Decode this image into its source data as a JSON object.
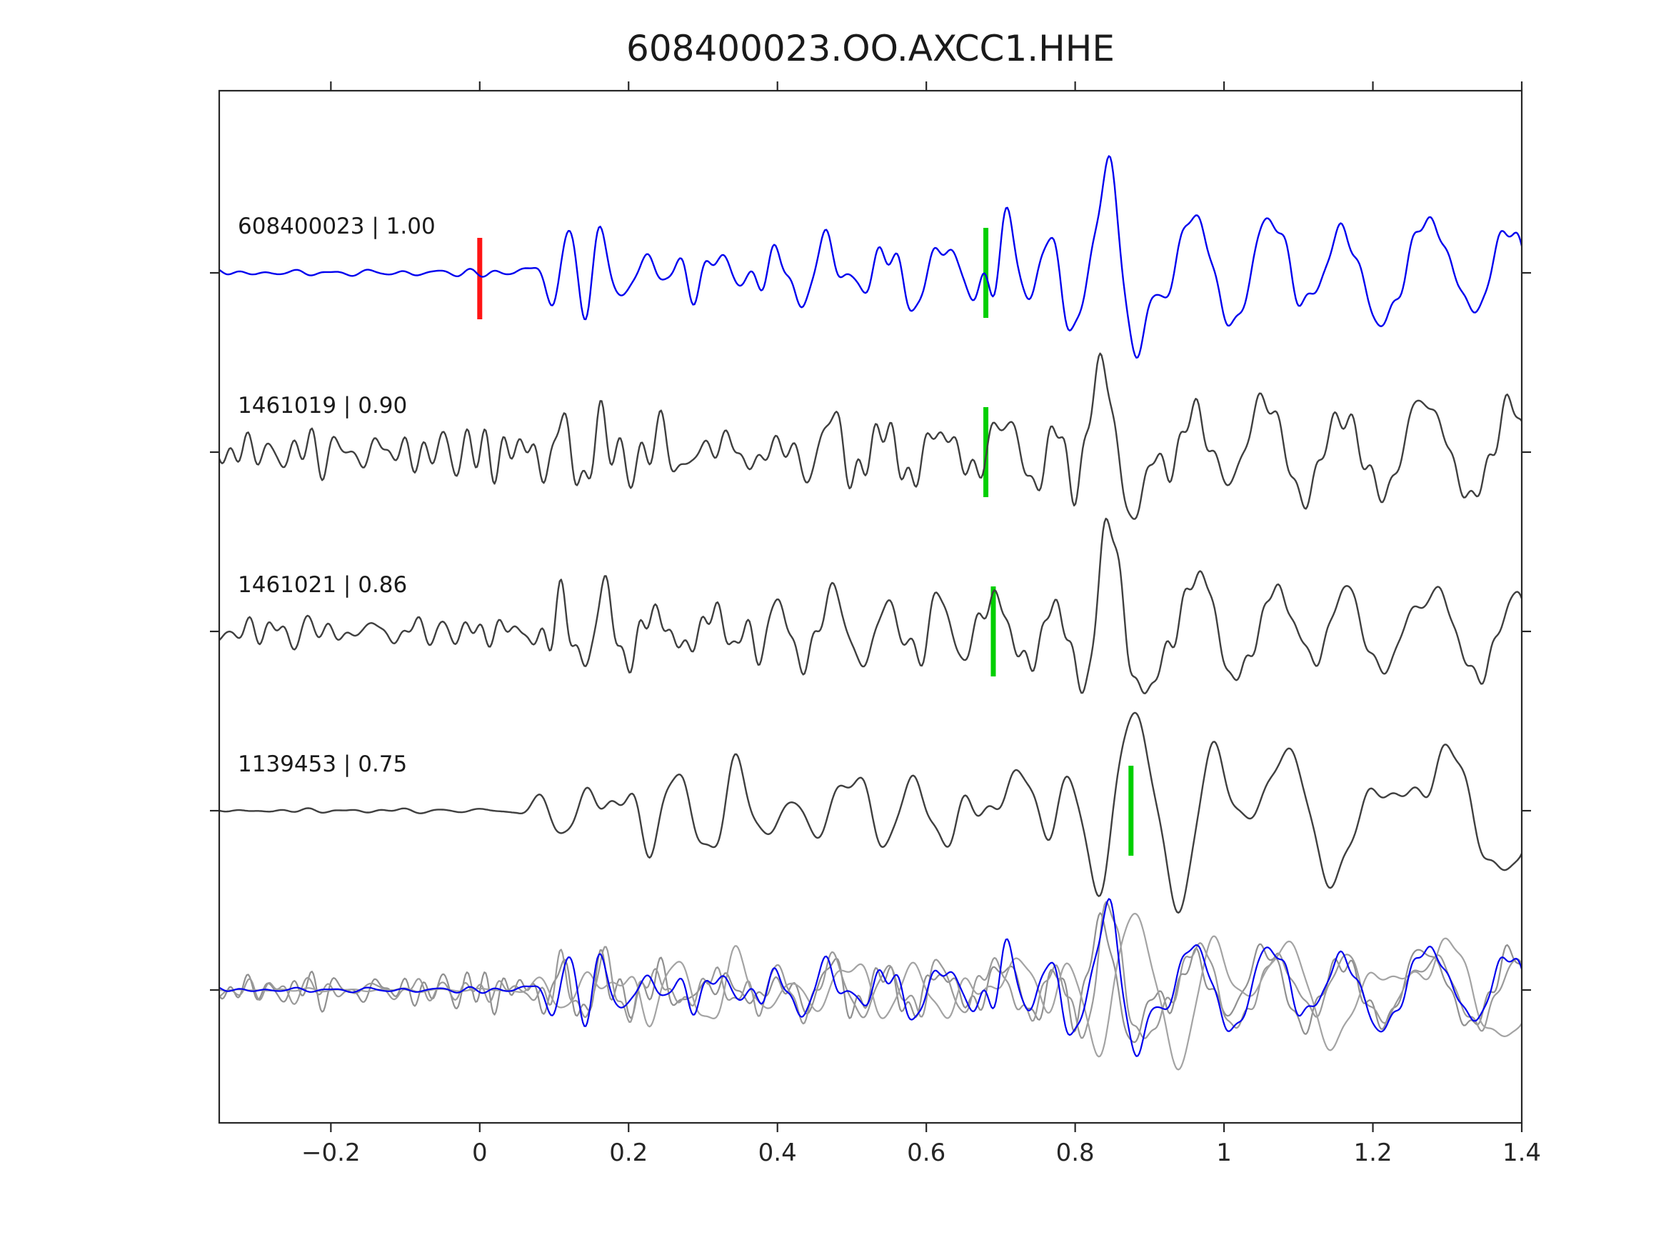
{
  "chart_data": {
    "type": "line",
    "title": "608400023.OO.AXCC1.HHE",
    "xlabel": "",
    "ylabel": "",
    "xlim": [
      -0.35,
      1.4
    ],
    "grid": false,
    "legend_position": "none",
    "xticks": [
      {
        "v": -0.2,
        "label": "−0.2"
      },
      {
        "v": 0.0,
        "label": "0"
      },
      {
        "v": 0.2,
        "label": "0.2"
      },
      {
        "v": 0.4,
        "label": "0.4"
      },
      {
        "v": 0.6,
        "label": "0.6"
      },
      {
        "v": 0.8,
        "label": "0.8"
      },
      {
        "v": 1.0,
        "label": "1"
      },
      {
        "v": 1.2,
        "label": "1.2"
      },
      {
        "v": 1.4,
        "label": "1.4"
      }
    ],
    "colors": {
      "template_trace": "#0000ee",
      "match_trace": "#3f3f3f",
      "overlay_gray": "#969696",
      "reference_marker": "#ff1414",
      "pick_marker": "#00cf00",
      "axis": "#262626"
    },
    "traces": [
      {
        "id": "608400023",
        "label": "608400023 | 1.00",
        "similarity": 1.0,
        "color": "#0000ee",
        "seed": 11,
        "shift": 0.0,
        "scale": 140,
        "fmul": 1.0,
        "smul": 1.0,
        "noise_env": [
          [
            -0.35,
            0.04
          ],
          [
            0.04,
            0.04
          ],
          [
            0.1,
            0.24
          ],
          [
            0.78,
            0.24
          ],
          [
            0.95,
            0.13
          ],
          [
            1.4,
            0.13
          ]
        ],
        "markers": [
          {
            "x": 0.0,
            "color": "#ff1414",
            "kind": "reference-pick"
          },
          {
            "x": 0.68,
            "color": "#00cf00",
            "kind": "pick"
          }
        ]
      },
      {
        "id": "1461019",
        "label": "1461019 | 0.90",
        "similarity": 0.9,
        "color": "#3f3f3f",
        "seed": 23,
        "shift": 0.0,
        "scale": 130,
        "fmul": 1.0,
        "smul": 1.0,
        "noise_env": [
          [
            -0.35,
            0.22
          ],
          [
            0.05,
            0.22
          ],
          [
            0.1,
            0.28
          ],
          [
            0.78,
            0.26
          ],
          [
            0.95,
            0.15
          ],
          [
            1.4,
            0.15
          ]
        ],
        "markers": [
          {
            "x": 0.68,
            "color": "#00cf00",
            "kind": "pick"
          }
        ]
      },
      {
        "id": "1461021",
        "label": "1461021 | 0.86",
        "similarity": 0.86,
        "color": "#3f3f3f",
        "seed": 37,
        "shift": 0.0,
        "scale": 130,
        "fmul": 1.0,
        "smul": 1.0,
        "noise_env": [
          [
            -0.35,
            0.2
          ],
          [
            0.05,
            0.2
          ],
          [
            0.1,
            0.27
          ],
          [
            0.78,
            0.26
          ],
          [
            0.95,
            0.15
          ],
          [
            1.4,
            0.15
          ]
        ],
        "markers": [
          {
            "x": 0.69,
            "color": "#00cf00",
            "kind": "pick"
          }
        ]
      },
      {
        "id": "1139453",
        "label": "1139453 | 0.75",
        "similarity": 0.75,
        "color": "#3f3f3f",
        "seed": 51,
        "shift": 0.03,
        "scale": 150,
        "fmul": 0.75,
        "smul": 1.35,
        "noise_env": [
          [
            -0.35,
            0.02
          ],
          [
            0.05,
            0.02
          ],
          [
            0.12,
            0.18
          ],
          [
            0.8,
            0.22
          ],
          [
            1.4,
            0.16
          ]
        ],
        "markers": [
          {
            "x": 0.875,
            "color": "#00cf00",
            "kind": "pick"
          }
        ]
      }
    ],
    "components": [
      [
        0.115,
        19,
        0.3,
        0.035
      ],
      [
        0.165,
        16,
        0.22,
        0.04
      ],
      [
        0.235,
        18,
        0.15,
        0.05
      ],
      [
        0.32,
        15,
        0.17,
        0.05
      ],
      [
        0.4,
        17,
        0.18,
        0.045
      ],
      [
        0.465,
        12,
        0.3,
        0.045
      ],
      [
        0.55,
        14,
        0.2,
        0.05
      ],
      [
        0.625,
        11,
        0.24,
        0.05
      ],
      [
        0.7,
        10,
        0.33,
        0.05
      ],
      [
        0.775,
        12,
        0.32,
        0.04
      ],
      [
        0.845,
        11,
        1.05,
        0.055
      ],
      [
        0.955,
        9,
        0.55,
        0.06
      ],
      [
        1.06,
        8,
        0.5,
        0.07
      ],
      [
        1.17,
        8,
        0.45,
        0.07
      ],
      [
        1.28,
        7,
        0.5,
        0.08
      ],
      [
        1.39,
        8,
        0.42,
        0.06
      ]
    ],
    "overlay": {
      "scale_mul": 0.78,
      "members": [
        {
          "trace": 1,
          "color": "#909090"
        },
        {
          "trace": 2,
          "color": "#9a9a9a"
        },
        {
          "trace": 3,
          "color": "#a3a3a3"
        },
        {
          "trace": 0,
          "color": "#0000ee"
        }
      ]
    }
  }
}
